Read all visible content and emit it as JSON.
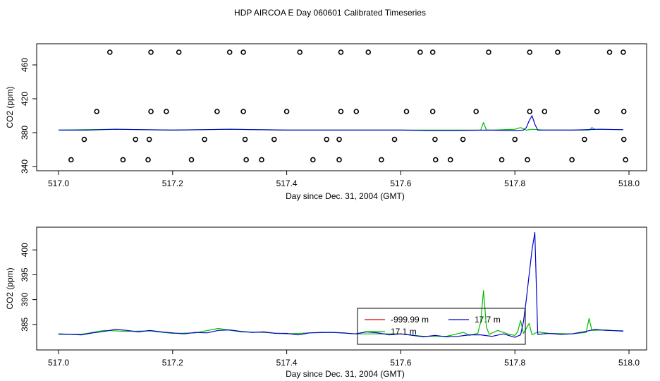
{
  "title": "HDP AIRCOA E  Day 060601  Calibrated Timeseries",
  "chart_data": [
    {
      "type": "line",
      "xlabel": "Day since Dec. 31, 2004 (GMT)",
      "ylabel": "CO2 (ppm)",
      "xlim": [
        517.0,
        518.0
      ],
      "ylim": [
        340,
        480
      ],
      "xticks": [
        517.0,
        517.2,
        517.4,
        517.6,
        517.8,
        518.0
      ],
      "xtick_labels": [
        "517.0",
        "517.2",
        "517.4",
        "517.6",
        "517.8",
        "518.0"
      ],
      "yticks": [
        340,
        380,
        420,
        460
      ],
      "ytick_labels": [
        "340",
        "380",
        "420",
        "460"
      ],
      "series": [
        {
          "color": "#0000cc",
          "x": [
            517.0,
            517.05,
            517.1,
            517.15,
            517.2,
            517.25,
            517.3,
            517.35,
            517.4,
            517.45,
            517.5,
            517.55,
            517.6,
            517.65,
            517.7,
            517.75,
            517.8,
            517.815,
            517.82,
            517.825,
            517.83,
            517.835,
            517.84,
            517.86,
            517.9,
            517.95,
            517.99
          ],
          "y": [
            383,
            383,
            384,
            383.5,
            383,
            383.5,
            384,
            383.5,
            383,
            383,
            383,
            383,
            383,
            382.5,
            382.5,
            383,
            382.5,
            383,
            386,
            394,
            400,
            390,
            383,
            383,
            383,
            384,
            383.5
          ]
        },
        {
          "color": "#00bb00",
          "x": [
            517.0,
            517.1,
            517.2,
            517.3,
            517.4,
            517.5,
            517.6,
            517.7,
            517.74,
            517.745,
            517.75,
            517.76,
            517.8,
            517.81,
            517.82,
            517.83,
            517.85,
            517.9,
            517.93,
            517.935,
            517.94,
            517.99
          ],
          "y": [
            383,
            384,
            383,
            384,
            383,
            383,
            383,
            383,
            383,
            392,
            383,
            383,
            384,
            386,
            383,
            384,
            383,
            383,
            383,
            386,
            384,
            383.5
          ]
        }
      ],
      "flags": [
        {
          "level": 475,
          "x": [
            517.09,
            517.162,
            517.211,
            517.3,
            517.324,
            517.423,
            517.495,
            517.543,
            517.634,
            517.656,
            517.754,
            517.826,
            517.875,
            517.966,
            517.99
          ]
        },
        {
          "level": 405,
          "x": [
            517.067,
            517.162,
            517.189,
            517.278,
            517.324,
            517.4,
            517.495,
            517.522,
            517.61,
            517.656,
            517.732,
            517.826,
            517.852,
            517.944,
            517.991
          ]
        },
        {
          "level": 372,
          "x": [
            517.045,
            517.135,
            517.159,
            517.256,
            517.327,
            517.378,
            517.47,
            517.492,
            517.589,
            517.66,
            517.709,
            517.8,
            517.922,
            517.991
          ]
        },
        {
          "level": 348,
          "x": [
            517.022,
            517.113,
            517.157,
            517.233,
            517.329,
            517.356,
            517.446,
            517.492,
            517.566,
            517.661,
            517.687,
            517.777,
            517.822,
            517.9,
            517.994
          ]
        }
      ]
    },
    {
      "type": "line",
      "xlabel": "Day since Dec. 31, 2004 (GMT)",
      "ylabel": "CO2 (ppm)",
      "xlim": [
        517.0,
        518.0
      ],
      "ylim": [
        381,
        404
      ],
      "xticks": [
        517.0,
        517.2,
        517.4,
        517.6,
        517.8,
        518.0
      ],
      "xtick_labels": [
        "517.0",
        "517.2",
        "517.4",
        "517.6",
        "517.8",
        "518.0"
      ],
      "yticks": [
        385,
        390,
        395,
        400
      ],
      "ytick_labels": [
        "385",
        "390",
        "395",
        "400"
      ],
      "series": [
        {
          "name": "17.7 m",
          "color": "#0000cc",
          "x": [
            517.0,
            517.02,
            517.04,
            517.06,
            517.08,
            517.1,
            517.12,
            517.14,
            517.16,
            517.18,
            517.2,
            517.22,
            517.24,
            517.26,
            517.28,
            517.3,
            517.32,
            517.34,
            517.36,
            517.38,
            517.4,
            517.42,
            517.44,
            517.46,
            517.48,
            517.5,
            517.52,
            517.54,
            517.56,
            517.58,
            517.6,
            517.62,
            517.64,
            517.66,
            517.68,
            517.7,
            517.72,
            517.74,
            517.76,
            517.78,
            517.8,
            517.81,
            517.815,
            517.82,
            517.825,
            517.83,
            517.835,
            517.84,
            517.86,
            517.88,
            517.9,
            517.92,
            517.94,
            517.96,
            517.99
          ],
          "y": [
            383.1,
            383,
            382.9,
            383.3,
            383.6,
            384,
            383.8,
            383.5,
            383.8,
            383.5,
            383.3,
            383.1,
            383.4,
            383.3,
            383.8,
            383.9,
            383.6,
            383.4,
            383.5,
            383.2,
            383.2,
            382.9,
            383.3,
            383.4,
            383.4,
            383.3,
            383.1,
            383.5,
            383.3,
            382.9,
            383.1,
            382.8,
            382.5,
            382.8,
            382.5,
            382.6,
            382.9,
            382.9,
            382.6,
            383.1,
            382.4,
            382.9,
            385.5,
            390,
            395,
            400,
            403.5,
            383,
            383.2,
            383,
            383.1,
            383.5,
            384,
            383.8,
            383.7
          ]
        },
        {
          "name": "17.1 m",
          "color": "#00bb00",
          "x": [
            517.0,
            517.04,
            517.08,
            517.12,
            517.16,
            517.2,
            517.24,
            517.28,
            517.32,
            517.36,
            517.4,
            517.44,
            517.48,
            517.52,
            517.56,
            517.6,
            517.64,
            517.68,
            517.71,
            517.72,
            517.735,
            517.74,
            517.745,
            517.75,
            517.755,
            517.77,
            517.79,
            517.8,
            517.805,
            517.81,
            517.815,
            517.82,
            517.825,
            517.83,
            517.84,
            517.86,
            517.9,
            517.925,
            517.93,
            517.935,
            517.96,
            517.99
          ],
          "y": [
            383,
            383,
            383.8,
            383.6,
            383.7,
            383.2,
            383.3,
            384.2,
            383.5,
            383.4,
            383.1,
            383.3,
            383.4,
            383.1,
            383.1,
            383.1,
            382.6,
            382.6,
            383.4,
            382.8,
            383.2,
            385.5,
            391.8,
            384.5,
            383,
            383.8,
            383,
            382.8,
            383.5,
            385.8,
            383.2,
            384.2,
            385.2,
            382.9,
            383.5,
            383.2,
            383.1,
            383.4,
            386.2,
            383.8,
            383.9,
            383.6
          ]
        }
      ],
      "legend": {
        "placement": "bottom-center",
        "entries": [
          {
            "label": "-999.99 m",
            "color": "#dd0000"
          },
          {
            "label": "17.7 m",
            "color": "#0000cc"
          },
          {
            "label": "17.1 m",
            "color": "#00bb00"
          }
        ]
      }
    }
  ]
}
